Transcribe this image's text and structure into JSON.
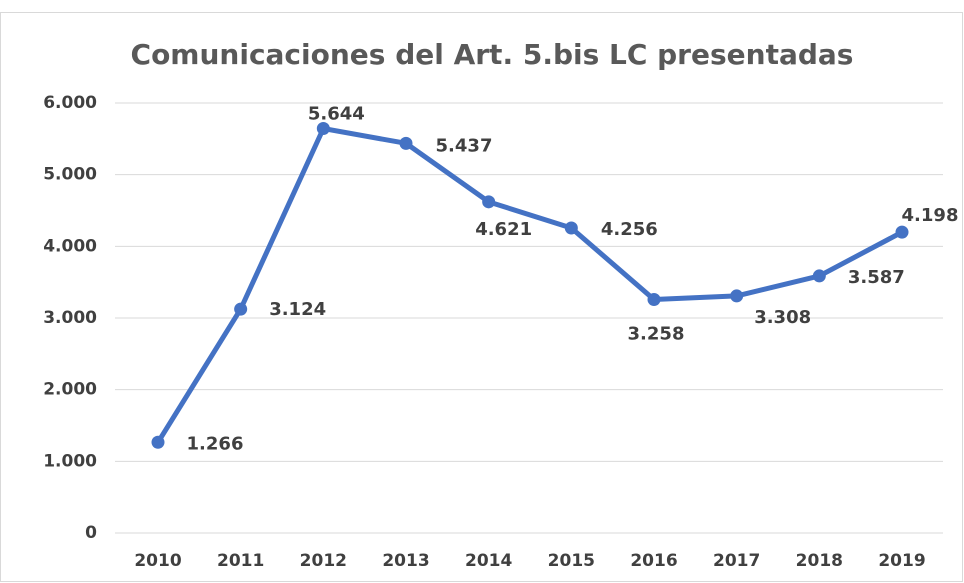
{
  "chart_data": {
    "type": "line",
    "title": "Comunicaciones del Art. 5.bis LC presentadas",
    "categories": [
      "2010",
      "2011",
      "2012",
      "2013",
      "2014",
      "2015",
      "2016",
      "2017",
      "2018",
      "2019"
    ],
    "series": [
      {
        "color": "#4472c4",
        "values": [
          1266,
          3124,
          5644,
          5437,
          4621,
          4256,
          3258,
          3308,
          3587,
          4198
        ],
        "value_labels": [
          "1.266",
          "3.124",
          "5.644",
          "5.437",
          "4.621",
          "4.256",
          "3.258",
          "3.308",
          "3.587",
          "4.198"
        ]
      }
    ],
    "ylim": [
      0,
      6000
    ],
    "yticks": [
      0,
      {
        "value": 1000,
        "label": "1.000"
      },
      {
        "value": 2000,
        "label": "2.000"
      },
      {
        "value": 3000,
        "label": "3.000"
      },
      {
        "value": 4000,
        "label": "4.000"
      },
      {
        "value": 5000,
        "label": "5.000"
      },
      {
        "value": 6000,
        "label": "6.000"
      }
    ],
    "grid": true
  }
}
